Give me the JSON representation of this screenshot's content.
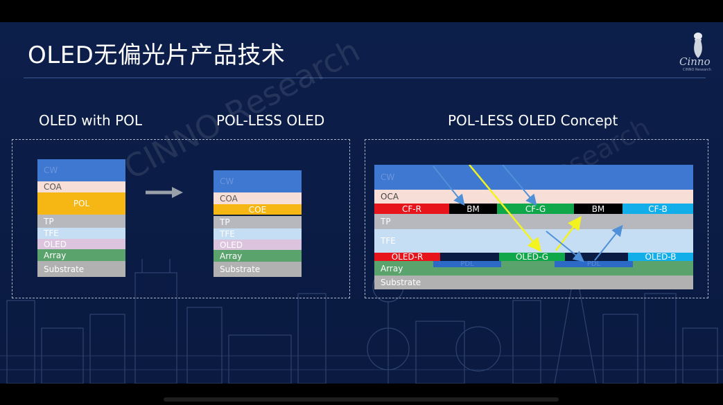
{
  "slide": {
    "title": "OLED无偏光片产品技术",
    "logo_text": "Cinno",
    "logo_sub": "CINNO Research",
    "watermark": "CINNO Research",
    "watermark2": "Research"
  },
  "panels": {
    "with_pol": {
      "heading": "OLED with POL",
      "layers": [
        "CW",
        "COA",
        "POL",
        "TP",
        "TFE",
        "OLED",
        "Array",
        "Substrate"
      ]
    },
    "pol_less": {
      "heading": "POL-LESS OLED",
      "layers": [
        "CW",
        "COA",
        "COE",
        "TP",
        "TFE",
        "OLED",
        "Array",
        "Substrate"
      ]
    },
    "concept": {
      "heading": "POL-LESS OLED Concept",
      "layers": [
        "CW",
        "OCA",
        "TP",
        "TFE",
        "Array",
        "Substrate"
      ],
      "color_filters": [
        "CF-R",
        "BM",
        "CF-G",
        "BM",
        "CF-B"
      ],
      "oled_pixels": [
        "OLED-R",
        "OLED-G",
        "OLED-B"
      ],
      "pdl_label": "PDL"
    }
  },
  "colors": {
    "cw": "#3f78d0",
    "coa": "#f7dfd7",
    "pol": "#f6b614",
    "tp": "#b6b8bd",
    "tfe": "#c6def4",
    "oled": "#dcc3de",
    "array": "#5aa36c",
    "substrate": "#b1b1b1",
    "cf_r": "#e8141c",
    "bm": "#000000",
    "cf_g": "#10a64a",
    "cf_b": "#12aee9",
    "pdl": "#2d6ac8",
    "arrow_yellow": "#f3f320",
    "arrow_blue": "#4f90d8"
  }
}
